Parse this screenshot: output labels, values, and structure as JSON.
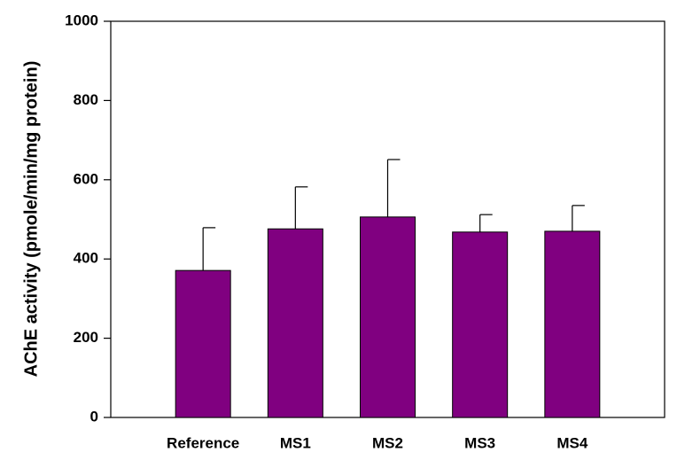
{
  "chart_data": {
    "type": "bar",
    "y_label": "AChE activity (pmole/min/mg protein)",
    "categories": [
      "Reference",
      "MS1",
      "MS2",
      "MS3",
      "MS4"
    ],
    "values": [
      371,
      476,
      506,
      468,
      470
    ],
    "errors": [
      108,
      106,
      145,
      44,
      65
    ],
    "color": "#800080",
    "ylim": [
      0,
      1000
    ],
    "yticks": [
      0,
      200,
      400,
      600,
      800,
      1000
    ]
  }
}
